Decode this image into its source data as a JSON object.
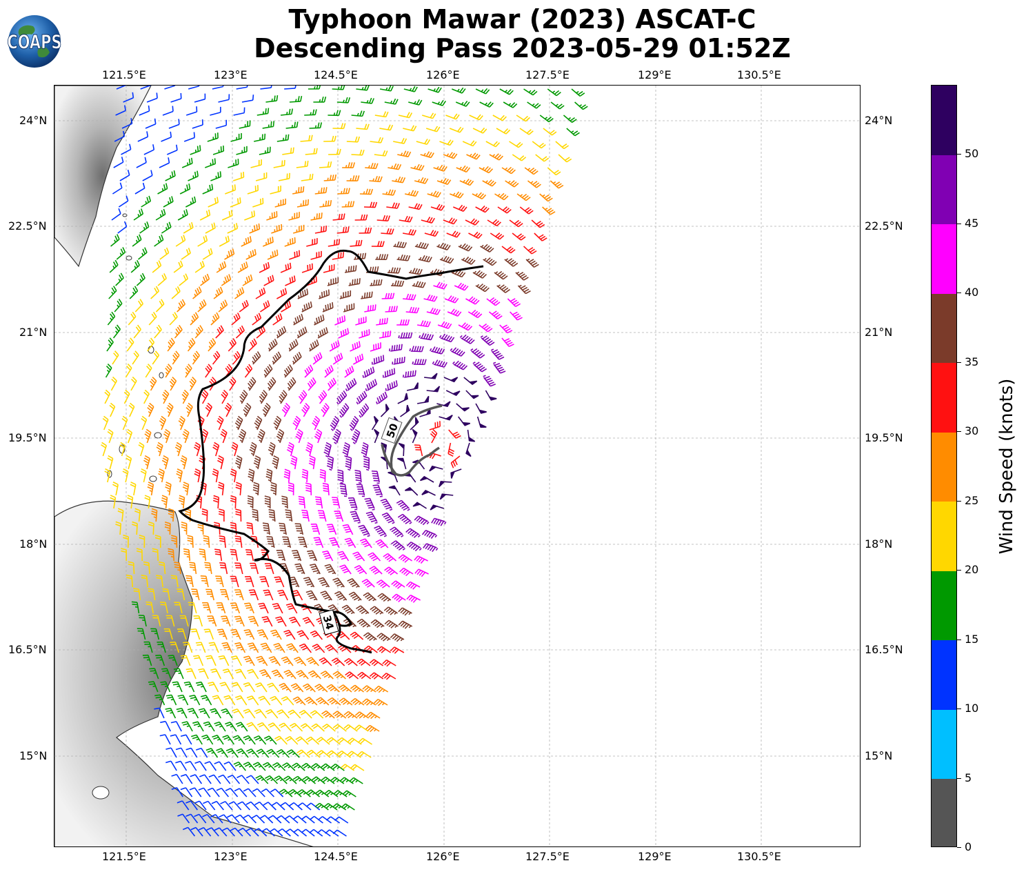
{
  "header": {
    "title_line1": "Typhoon Mawar (2023) ASCAT-C",
    "title_line2": "Descending Pass 2023-05-29 01:52Z",
    "logo_text": "COAPS"
  },
  "map": {
    "lon_ticks": [
      "121.5°E",
      "123°E",
      "124.5°E",
      "126°E",
      "127.5°E",
      "129°E",
      "130.5°E"
    ],
    "lat_ticks": [
      "24°N",
      "22.5°N",
      "21°N",
      "19.5°N",
      "18°N",
      "16.5°N",
      "15°N"
    ],
    "extent": {
      "lon_min": 120.5,
      "lon_max": 131.9,
      "lat_min": 13.5,
      "lat_max": 24.5
    },
    "contours": [
      {
        "label": "34",
        "level_knots": 34,
        "color": "#000000"
      },
      {
        "label": "50",
        "level_knots": 50,
        "color": "#555555"
      }
    ],
    "storm_center_approx": {
      "lon": 125.9,
      "lat": 19.6
    }
  },
  "colorbar": {
    "title": "Wind Speed (knots)",
    "tick_labels": [
      "0",
      "5",
      "10",
      "15",
      "20",
      "25",
      "30",
      "35",
      "40",
      "45",
      "50"
    ],
    "bins": [
      {
        "from": 0,
        "to": 5,
        "color": "#555555"
      },
      {
        "from": 5,
        "to": 10,
        "color": "#00bfff"
      },
      {
        "from": 10,
        "to": 15,
        "color": "#0033ff"
      },
      {
        "from": 15,
        "to": 20,
        "color": "#009900"
      },
      {
        "from": 20,
        "to": 25,
        "color": "#ffd700"
      },
      {
        "from": 25,
        "to": 30,
        "color": "#ff8c00"
      },
      {
        "from": 30,
        "to": 35,
        "color": "#ff1111"
      },
      {
        "from": 35,
        "to": 40,
        "color": "#7b3b2a"
      },
      {
        "from": 40,
        "to": 45,
        "color": "#ff00ff"
      },
      {
        "from": 45,
        "to": 50,
        "color": "#8000b3"
      },
      {
        "from": 50,
        "to": 55,
        "color": "#2e0060"
      }
    ]
  }
}
